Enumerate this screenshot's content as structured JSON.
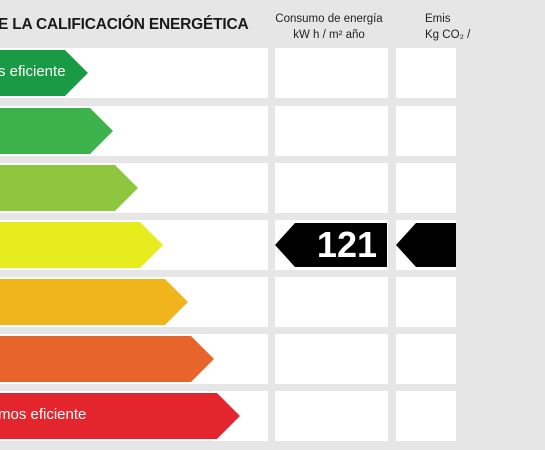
{
  "header": {
    "title": "E LA CALIFICACIÓN ENERGÉTICA",
    "consumo_title": "Consumo de energía",
    "consumo_unit": "kW h / m² año",
    "emisiones_title": "Emis",
    "emisiones_unit": "Kg CO₂ /"
  },
  "scale": [
    {
      "label": "s eficiente",
      "color": "#1a9a45"
    },
    {
      "label": "",
      "color": "#3db24a"
    },
    {
      "label": "",
      "color": "#8ec63f"
    },
    {
      "label": "",
      "color": "#e7ec1f"
    },
    {
      "label": "",
      "color": "#f0b51d"
    },
    {
      "label": "",
      "color": "#e7642a"
    },
    {
      "label": "mos eficiente",
      "color": "#e3262d"
    }
  ],
  "rating": {
    "consumo_value": "121",
    "emisiones_value": "",
    "row_index": 3
  }
}
